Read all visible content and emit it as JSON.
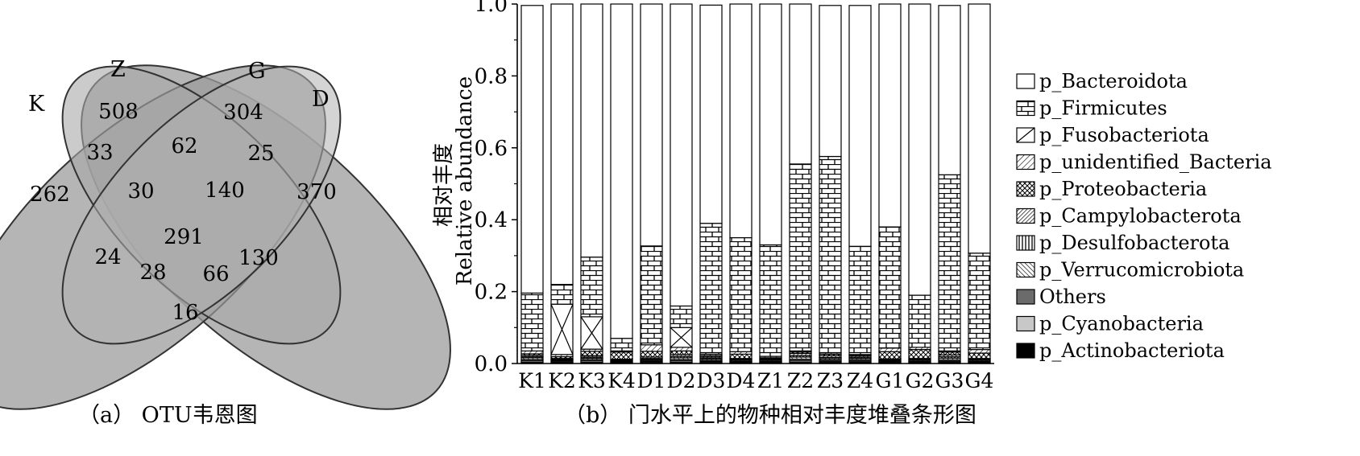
{
  "venn": {
    "sets": [
      "K",
      "Z",
      "G",
      "D"
    ],
    "caption": "（a） OTU韦恩图",
    "regions": [
      {
        "id": "K",
        "value": "262"
      },
      {
        "id": "Z",
        "value": "508"
      },
      {
        "id": "G",
        "value": "304"
      },
      {
        "id": "D",
        "value": "370"
      },
      {
        "id": "KZ",
        "value": "33"
      },
      {
        "id": "ZG",
        "value": "62"
      },
      {
        "id": "GD",
        "value": "25"
      },
      {
        "id": "KZG",
        "value": "30"
      },
      {
        "id": "ZGD",
        "value": "140"
      },
      {
        "id": "KZGD",
        "value": "291"
      },
      {
        "id": "KG",
        "value": "24"
      },
      {
        "id": "ZD",
        "value": "130"
      },
      {
        "id": "KGD",
        "value": "28"
      },
      {
        "id": "KZD",
        "value": "66"
      },
      {
        "id": "KD",
        "value": "16"
      }
    ]
  },
  "chart_data": {
    "type": "bar",
    "stacked": true,
    "caption": "（b） 门水平上的物种相对丰度堆叠条形图",
    "ylabel_cn": "相对丰度",
    "ylabel_en": "Relative abundance",
    "ylim": [
      0,
      1.0
    ],
    "yticks": [
      "0.0",
      "0.2",
      "0.4",
      "0.6",
      "0.8",
      "1.0"
    ],
    "legend_position": "right",
    "categories": [
      "K1",
      "K2",
      "K3",
      "K4",
      "D1",
      "D2",
      "D3",
      "D4",
      "Z1",
      "Z2",
      "Z3",
      "Z4",
      "G1",
      "G2",
      "G3",
      "G4"
    ],
    "series": [
      {
        "name": "p_Actinobacteriota",
        "values": [
          0.003,
          0.002,
          0.003,
          0.002,
          0.003,
          0.003,
          0.003,
          0.002,
          0.002,
          0.003,
          0.003,
          0.004,
          0.002,
          0.002,
          0.003,
          0.002
        ]
      },
      {
        "name": "p_Cyanobacteria",
        "values": [
          0.004,
          0.003,
          0.004,
          0.002,
          0.003,
          0.004,
          0.003,
          0.002,
          0.002,
          0.004,
          0.003,
          0.003,
          0.002,
          0.002,
          0.003,
          0.002
        ]
      },
      {
        "name": "Others",
        "values": [
          0.004,
          0.003,
          0.004,
          0.002,
          0.003,
          0.004,
          0.003,
          0.002,
          0.002,
          0.005,
          0.004,
          0.004,
          0.002,
          0.002,
          0.004,
          0.002
        ]
      },
      {
        "name": "p_Verrucomicrobiota",
        "values": [
          0.005,
          0.002,
          0.004,
          0.002,
          0.003,
          0.005,
          0.004,
          0.003,
          0.003,
          0.006,
          0.004,
          0.004,
          0.002,
          0.003,
          0.005,
          0.003
        ]
      },
      {
        "name": "p_Desulfobacterota",
        "values": [
          0.003,
          0.002,
          0.003,
          0.002,
          0.002,
          0.004,
          0.003,
          0.002,
          0.002,
          0.004,
          0.003,
          0.003,
          0.002,
          0.002,
          0.004,
          0.002
        ]
      },
      {
        "name": "p_Campylobacterota",
        "values": [
          0.004,
          0.002,
          0.004,
          0.002,
          0.004,
          0.005,
          0.004,
          0.003,
          0.003,
          0.006,
          0.005,
          0.004,
          0.003,
          0.003,
          0.005,
          0.003
        ]
      },
      {
        "name": "p_Proteobacteria",
        "values": [
          0.004,
          0.005,
          0.012,
          0.02,
          0.016,
          0.01,
          0.002,
          0.012,
          0.002,
          0.004,
          0.004,
          0.001,
          0.02,
          0.025,
          0.008,
          0.015
        ]
      },
      {
        "name": "p_unidentified_Bacteria",
        "values": [
          0.008,
          0.006,
          0.006,
          0.003,
          0.018,
          0.01,
          0.004,
          0.007,
          0.004,
          0.003,
          0.004,
          0.002,
          0.01,
          0.006,
          0.003,
          0.01
        ]
      },
      {
        "name": "p_Fusobacteriota",
        "values": [
          0.0,
          0.14,
          0.09,
          0.0,
          0.0,
          0.055,
          0.0,
          0.0,
          0.0,
          0.0,
          0.0,
          0.0,
          0.0,
          0.0,
          0.0,
          0.0
        ]
      },
      {
        "name": "p_Firmicutes",
        "values": [
          0.161,
          0.055,
          0.166,
          0.035,
          0.275,
          0.06,
          0.364,
          0.317,
          0.31,
          0.52,
          0.546,
          0.301,
          0.337,
          0.145,
          0.49,
          0.268
        ]
      },
      {
        "name": "p_Bacteroidota",
        "values": [
          0.8,
          0.78,
          0.704,
          0.93,
          0.673,
          0.84,
          0.607,
          0.65,
          0.67,
          0.445,
          0.42,
          0.67,
          0.62,
          0.81,
          0.471,
          0.693
        ]
      }
    ]
  },
  "legend_order": [
    "p_Bacteroidota",
    "p_Firmicutes",
    "p_Fusobacteriota",
    "p_unidentified_Bacteria",
    "p_Proteobacteria",
    "p_Campylobacterota",
    "p_Desulfobacterota",
    "p_Verrucomicrobiota",
    "Others",
    "p_Cyanobacteria",
    "p_Actinobacteriota"
  ],
  "styles": {
    "p_Bacteroidota": "plain",
    "p_Firmicutes": "brick",
    "p_Fusobacteriota": "xcross",
    "p_unidentified_Bacteria": "diagfine",
    "p_Proteobacteria": "crosshatch",
    "p_Campylobacterota": "diagdense",
    "p_Desulfobacterota": "vertical",
    "p_Verrucomicrobiota": "diagback",
    "Others": "#6b6b6b",
    "p_Cyanobacteria": "#c8c8c8",
    "p_Actinobacteriota": "#000000"
  }
}
